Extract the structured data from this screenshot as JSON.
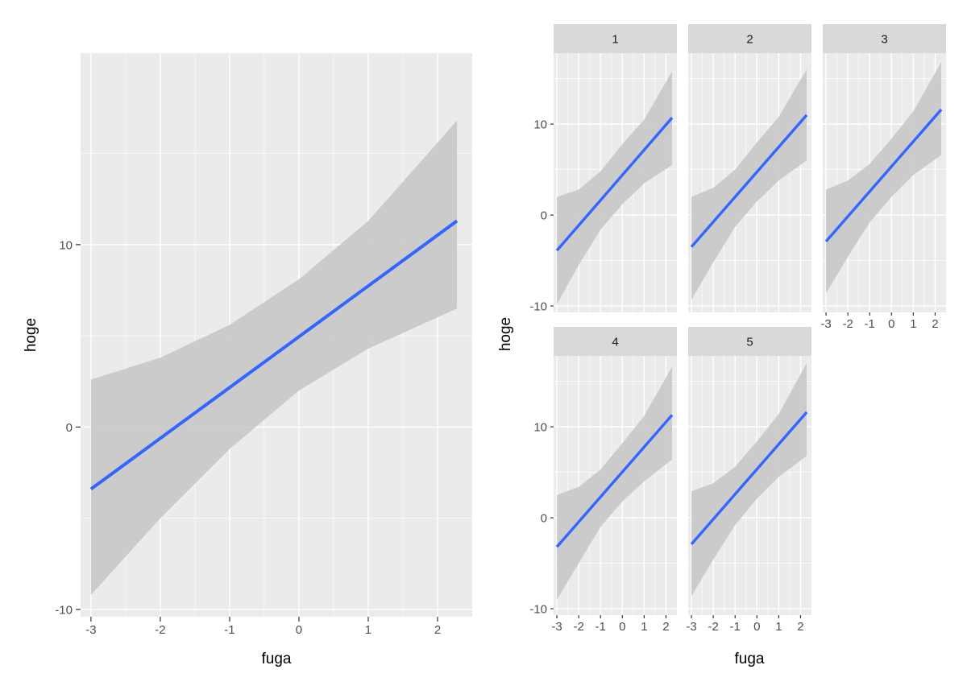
{
  "colors": {
    "panel_bg": "#ebebeb",
    "grid_major": "#ffffff",
    "strip_bg": "#d9d9d9",
    "ribbon": "#c8c8c8",
    "line": "#3366ff",
    "axis_text": "#4d4d4d",
    "title_text": "#000000"
  },
  "chart_data": [
    {
      "type": "line",
      "description_layer": "smooth (lm) fit with confidence ribbon",
      "xlabel": "fuga",
      "ylabel": "hoge",
      "xlim": [
        -3.15,
        2.5
      ],
      "ylim": [
        -10.4,
        20.5
      ],
      "x_ticks": [
        -3,
        -2,
        -1,
        0,
        1,
        2
      ],
      "x_tick_labels": [
        "-3",
        "-2",
        "-1",
        "0",
        "1",
        "2"
      ],
      "y_ticks": [
        -10,
        0,
        10
      ],
      "y_tick_labels": [
        "-10",
        "0",
        "10"
      ],
      "grid": true,
      "fit": {
        "x": [
          -3.0,
          2.28
        ],
        "y": [
          -3.4,
          11.3
        ]
      },
      "ribbon": {
        "x": [
          -3.0,
          -2.0,
          -1.0,
          0.0,
          1.0,
          2.28
        ],
        "lower": [
          -9.2,
          -5.0,
          -1.2,
          2.0,
          4.3,
          6.5
        ],
        "upper": [
          2.6,
          3.8,
          5.6,
          8.1,
          11.3,
          16.8
        ]
      }
    },
    {
      "type": "line",
      "description_layer": "faceted smooth (lm) fits with confidence ribbons",
      "xlabel": "fuga",
      "ylabel": "hoge",
      "xlim": [
        -3.15,
        2.5
      ],
      "ylim": [
        -10.7,
        17.8
      ],
      "x_ticks": [
        -3,
        -2,
        -1,
        0,
        1,
        2
      ],
      "x_tick_labels": [
        "-3",
        "-2",
        "-1",
        "0",
        "1",
        "2"
      ],
      "y_ticks": [
        -10,
        0,
        10
      ],
      "y_tick_labels": [
        "-10",
        "0",
        "10"
      ],
      "grid": true,
      "panels": [
        {
          "label": "1",
          "fit": {
            "x": [
              -3.0,
              2.28
            ],
            "y": [
              -3.9,
              10.7
            ]
          },
          "ribbon": {
            "x": [
              -3.0,
              -2.0,
              -1.0,
              0.0,
              1.0,
              2.28
            ],
            "lower": [
              -9.8,
              -5.5,
              -1.6,
              1.2,
              3.5,
              5.5
            ],
            "upper": [
              2.0,
              2.8,
              4.8,
              7.8,
              10.5,
              15.8
            ]
          }
        },
        {
          "label": "2",
          "fit": {
            "x": [
              -3.0,
              2.28
            ],
            "y": [
              -3.5,
              11.0
            ]
          },
          "ribbon": {
            "x": [
              -3.0,
              -2.0,
              -1.0,
              0.0,
              1.0,
              2.28
            ],
            "lower": [
              -9.3,
              -5.2,
              -1.3,
              1.5,
              3.8,
              6.0
            ],
            "upper": [
              2.0,
              3.0,
              5.0,
              8.0,
              10.8,
              16.0
            ]
          }
        },
        {
          "label": "3",
          "fit": {
            "x": [
              -3.0,
              2.28
            ],
            "y": [
              -2.9,
              11.6
            ]
          },
          "ribbon": {
            "x": [
              -3.0,
              -2.0,
              -1.0,
              0.0,
              1.0,
              2.28
            ],
            "lower": [
              -8.6,
              -4.6,
              -0.8,
              2.0,
              4.4,
              6.6
            ],
            "upper": [
              2.8,
              3.8,
              5.6,
              8.4,
              11.4,
              16.8
            ]
          }
        },
        {
          "label": "4",
          "fit": {
            "x": [
              -3.0,
              2.28
            ],
            "y": [
              -3.2,
              11.3
            ]
          },
          "ribbon": {
            "x": [
              -3.0,
              -2.0,
              -1.0,
              0.0,
              1.0,
              2.28
            ],
            "lower": [
              -9.0,
              -5.0,
              -1.0,
              1.8,
              4.0,
              6.4
            ],
            "upper": [
              2.5,
              3.4,
              5.3,
              8.2,
              11.2,
              16.6
            ]
          }
        },
        {
          "label": "5",
          "fit": {
            "x": [
              -3.0,
              2.28
            ],
            "y": [
              -2.9,
              11.6
            ]
          },
          "ribbon": {
            "x": [
              -3.0,
              -2.0,
              -1.0,
              0.0,
              1.0,
              2.28
            ],
            "lower": [
              -8.6,
              -4.6,
              -0.8,
              2.1,
              4.5,
              6.8
            ],
            "upper": [
              2.9,
              3.8,
              5.6,
              8.4,
              11.4,
              17.0
            ]
          }
        }
      ]
    }
  ]
}
